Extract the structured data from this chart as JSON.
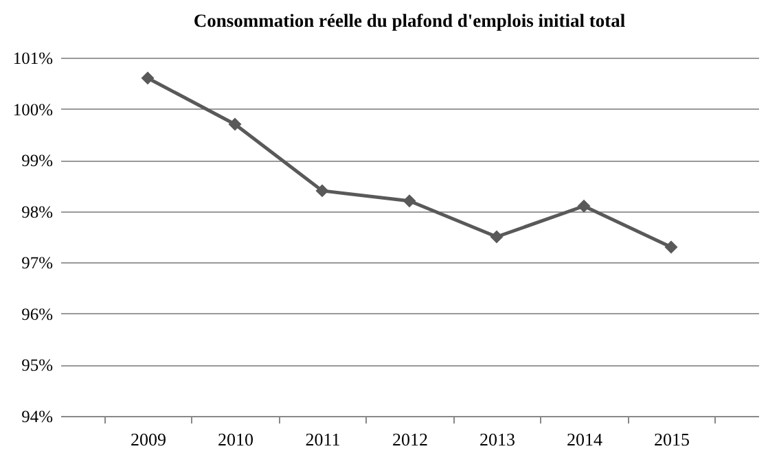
{
  "chart_data": {
    "type": "line",
    "title": "Consommation réelle du plafond d'emplois initial total",
    "categories": [
      "2009",
      "2010",
      "2011",
      "2012",
      "2013",
      "2014",
      "2015"
    ],
    "series": [
      {
        "color": "#595959",
        "values": [
          100.6,
          99.7,
          98.4,
          98.2,
          97.5,
          98.1,
          97.3
        ]
      }
    ],
    "ylim": [
      94,
      101
    ],
    "yticks": [
      {
        "value": 94,
        "label": "94%"
      },
      {
        "value": 95,
        "label": "95%"
      },
      {
        "value": 96,
        "label": "96%"
      },
      {
        "value": 97,
        "label": "97%"
      },
      {
        "value": 98,
        "label": "98%"
      },
      {
        "value": 99,
        "label": "99%"
      },
      {
        "value": 100,
        "label": "100%"
      },
      {
        "value": 101,
        "label": "101%"
      }
    ],
    "grid": "y",
    "legend": false,
    "marker": "diamond",
    "line_style": "solid"
  }
}
